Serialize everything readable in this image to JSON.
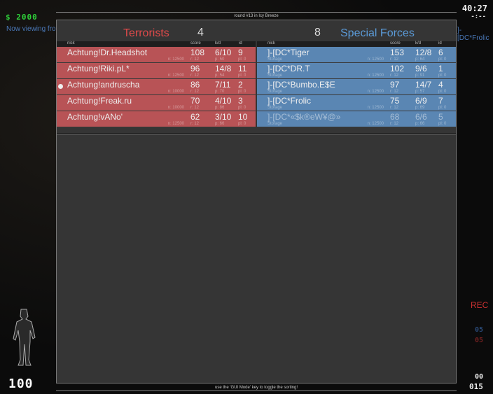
{
  "hud": {
    "money": "$ 2000",
    "timer": "40:27",
    "timer_sub": "-:--",
    "viewing": "Now viewing fro",
    "viewing_right": "]-[DC*Frolic",
    "rec": "REC",
    "ct_count": "05",
    "t_count": "05",
    "ammo_top": "00",
    "ammo_bottom": "015",
    "health": "100"
  },
  "header": {
    "round_info": "round #13 in Icy Breeze",
    "footer": "use the 'GUI Mode' key to toggle the sorting!"
  },
  "columns": {
    "nick": "nick",
    "score": "score",
    "kd": "k/d",
    "id": "id"
  },
  "colors": {
    "terrorists": "#e04a4a",
    "special_forces": "#5b9bd8",
    "t_row": "#b85356",
    "ct_row": "#5a86b3"
  },
  "terrorists": {
    "name": "Terrorists",
    "score": "4",
    "players": [
      {
        "nick": "Achtung!Dr.Headshot",
        "score": "108",
        "kd": "6/10",
        "id": "9",
        "n": "n: 12500",
        "r": "r: 12",
        "p": "p: 50",
        "pl": "pl: 0"
      },
      {
        "nick": "Achtung!Riki.pL*",
        "score": "96",
        "kd": "14/8",
        "id": "11",
        "n": "n: 12500",
        "r": "r: 12",
        "p": "p: 54",
        "pl": "pl: 0"
      },
      {
        "nick": "Achtung!andruscha",
        "score": "86",
        "kd": "7/11",
        "id": "2",
        "n": "n: 10000",
        "r": "r: 12",
        "p": "p: 70",
        "pl": "pl: 0"
      },
      {
        "nick": "Achtung!Freak.ru",
        "score": "70",
        "kd": "4/10",
        "id": "3",
        "n": "n: 10000",
        "r": "r: 12",
        "p": "p: 86",
        "pl": "pl: 0"
      },
      {
        "nick": "Achtung!vANo'",
        "score": "62",
        "kd": "3/10",
        "id": "10",
        "n": "n: 12500",
        "r": "r: 12",
        "p": "p: 66",
        "pl": "pl: 0"
      }
    ]
  },
  "special_forces": {
    "name": "Special Forces",
    "score": "8",
    "players": [
      {
        "nick": "]-[DC*Tiger",
        "loc": "Storage",
        "score": "153",
        "kd": "12/8",
        "id": "6",
        "n": "n: 12500",
        "r": "r: 12",
        "p": "p: 64",
        "pl": "pl: 0"
      },
      {
        "nick": "]-[DC*DR.T",
        "loc": "Storage",
        "score": "102",
        "kd": "9/6",
        "id": "1",
        "n": "n: 12500",
        "r": "r: 12",
        "p": "p: 91",
        "pl": "pl: 0"
      },
      {
        "nick": "]-[DC*Bumbo.E$E",
        "loc": "Storage",
        "score": "97",
        "kd": "14/7",
        "id": "4",
        "n": "n: 12500",
        "r": "r: 12",
        "p": "p: 57",
        "pl": "pl: 0"
      },
      {
        "nick": "]-[DC*Frolic",
        "loc": "Storage",
        "score": "75",
        "kd": "6/9",
        "id": "7",
        "n": "n: 12500",
        "r": "r: 12",
        "p": "p: 69",
        "pl": "pl: 0"
      },
      {
        "nick": "]-[DC*«$k®eW¥@»",
        "loc": "Storage",
        "score": "68",
        "kd": "6/6",
        "id": "5",
        "n": "n: 12500",
        "r": "r: 12",
        "p": "p: 66",
        "pl": "pl: 0"
      }
    ]
  }
}
